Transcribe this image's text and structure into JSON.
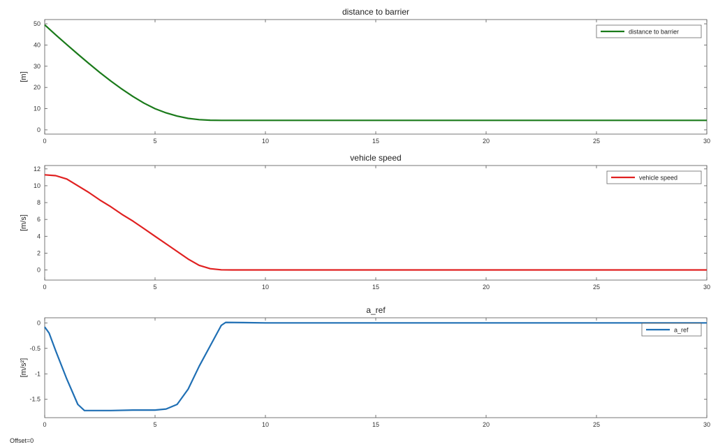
{
  "footer": {
    "offset_label": "Offset=0"
  },
  "chart_data": [
    {
      "type": "line",
      "title": "distance to barrier",
      "xlabel": "",
      "ylabel": "[m]",
      "xlim": [
        0,
        30
      ],
      "ylim": [
        -2,
        52
      ],
      "xticks": [
        "0",
        "5",
        "10",
        "15",
        "20",
        "25",
        "30"
      ],
      "yticks": [
        "0",
        "10",
        "20",
        "30",
        "40",
        "50"
      ],
      "grid": false,
      "legend_position": "top-right",
      "series": [
        {
          "name": "distance to barrier",
          "color": "#1a7a1a",
          "x": [
            0,
            0.5,
            1,
            1.5,
            2,
            2.5,
            3,
            3.5,
            4,
            4.5,
            5,
            5.5,
            6,
            6.5,
            7,
            7.5,
            8,
            9,
            10,
            15,
            20,
            25,
            30
          ],
          "y": [
            49.5,
            44.8,
            40.2,
            35.7,
            31.3,
            27.0,
            23.0,
            19.2,
            15.7,
            12.6,
            10.0,
            8.0,
            6.5,
            5.4,
            4.8,
            4.55,
            4.5,
            4.5,
            4.5,
            4.5,
            4.5,
            4.5,
            4.5
          ]
        }
      ]
    },
    {
      "type": "line",
      "title": "vehicle speed",
      "xlabel": "",
      "ylabel": "[m/s]",
      "xlim": [
        0,
        30
      ],
      "ylim": [
        -1.2,
        12.4
      ],
      "xticks": [
        "0",
        "5",
        "10",
        "15",
        "20",
        "25",
        "30"
      ],
      "yticks": [
        "0",
        "2",
        "4",
        "6",
        "8",
        "10",
        "12"
      ],
      "grid": false,
      "legend_position": "top-right",
      "series": [
        {
          "name": "vehicle speed",
          "color": "#e02020",
          "x": [
            0,
            0.5,
            1,
            1.5,
            2,
            2.5,
            3,
            3.5,
            4,
            4.5,
            5,
            5.5,
            6,
            6.5,
            7,
            7.5,
            8,
            8.5,
            9,
            10,
            15,
            20,
            25,
            30
          ],
          "y": [
            11.3,
            11.2,
            10.8,
            10.0,
            9.2,
            8.3,
            7.5,
            6.6,
            5.8,
            4.9,
            4.0,
            3.1,
            2.2,
            1.3,
            0.55,
            0.15,
            0.02,
            0,
            0,
            0,
            0,
            0,
            0,
            0
          ]
        }
      ]
    },
    {
      "type": "line",
      "title": "a_ref",
      "xlabel": "",
      "ylabel": "[m/s²]",
      "xlim": [
        0,
        30
      ],
      "ylim": [
        -1.86,
        0.1
      ],
      "xticks": [
        "0",
        "5",
        "10",
        "15",
        "20",
        "25",
        "30"
      ],
      "yticks": [
        "0",
        "-0.5",
        "-1",
        "-1.5"
      ],
      "grid": false,
      "legend_position": "top-right",
      "series": [
        {
          "name": "a_ref",
          "color": "#1f6fb4",
          "x": [
            0,
            0.2,
            0.5,
            1.0,
            1.5,
            1.8,
            2.0,
            3.0,
            4.0,
            5.0,
            5.5,
            6.0,
            6.5,
            7.0,
            7.5,
            8.0,
            8.2,
            9.0,
            10,
            15,
            20,
            25,
            30
          ],
          "y": [
            -0.08,
            -0.2,
            -0.55,
            -1.1,
            -1.6,
            -1.72,
            -1.72,
            -1.72,
            -1.71,
            -1.71,
            -1.69,
            -1.6,
            -1.3,
            -0.85,
            -0.45,
            -0.05,
            0.01,
            0.005,
            0,
            0,
            0,
            0,
            0
          ]
        }
      ]
    }
  ]
}
